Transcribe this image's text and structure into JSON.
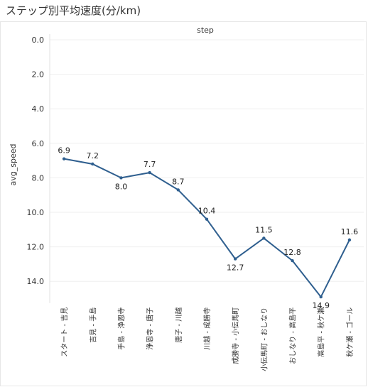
{
  "chart_data": {
    "type": "line",
    "title": "ステップ別平均速度(分/km)",
    "facet_label": "step",
    "ylabel": "avg_speed",
    "xlabel": "",
    "y_reversed": true,
    "ylim": [
      0,
      16
    ],
    "yticks": [
      "0.0",
      "2.0",
      "4.0",
      "6.0",
      "8.0",
      "10.0",
      "12.0",
      "14.0"
    ],
    "ytick_values": [
      0,
      2,
      4,
      6,
      8,
      10,
      12,
      14
    ],
    "grid": "horizontal",
    "categories": [
      "スタート - 吉見",
      "吉見 - 手島",
      "手島 - 浄恩寺",
      "浄恩寺 - 唐子",
      "唐子 - 川越",
      "川越 - 成勝寺",
      "成勝寺 - 小伝馬町",
      "小伝馬町 - おしなり",
      "おしなり - 高島平",
      "高島平 - 秋ケ瀬",
      "秋ケ瀬 - ゴール"
    ],
    "series": [
      {
        "values": [
          6.9,
          7.2,
          8.0,
          7.7,
          8.7,
          10.4,
          12.7,
          11.5,
          12.8,
          14.9,
          11.6
        ],
        "labels": [
          "6.9",
          "7.2",
          "8.0",
          "7.7",
          "8.7",
          "10.4",
          "12.7",
          "11.5",
          "12.8",
          "14.9",
          "11.6"
        ],
        "color": "#2f5f8f"
      }
    ]
  }
}
